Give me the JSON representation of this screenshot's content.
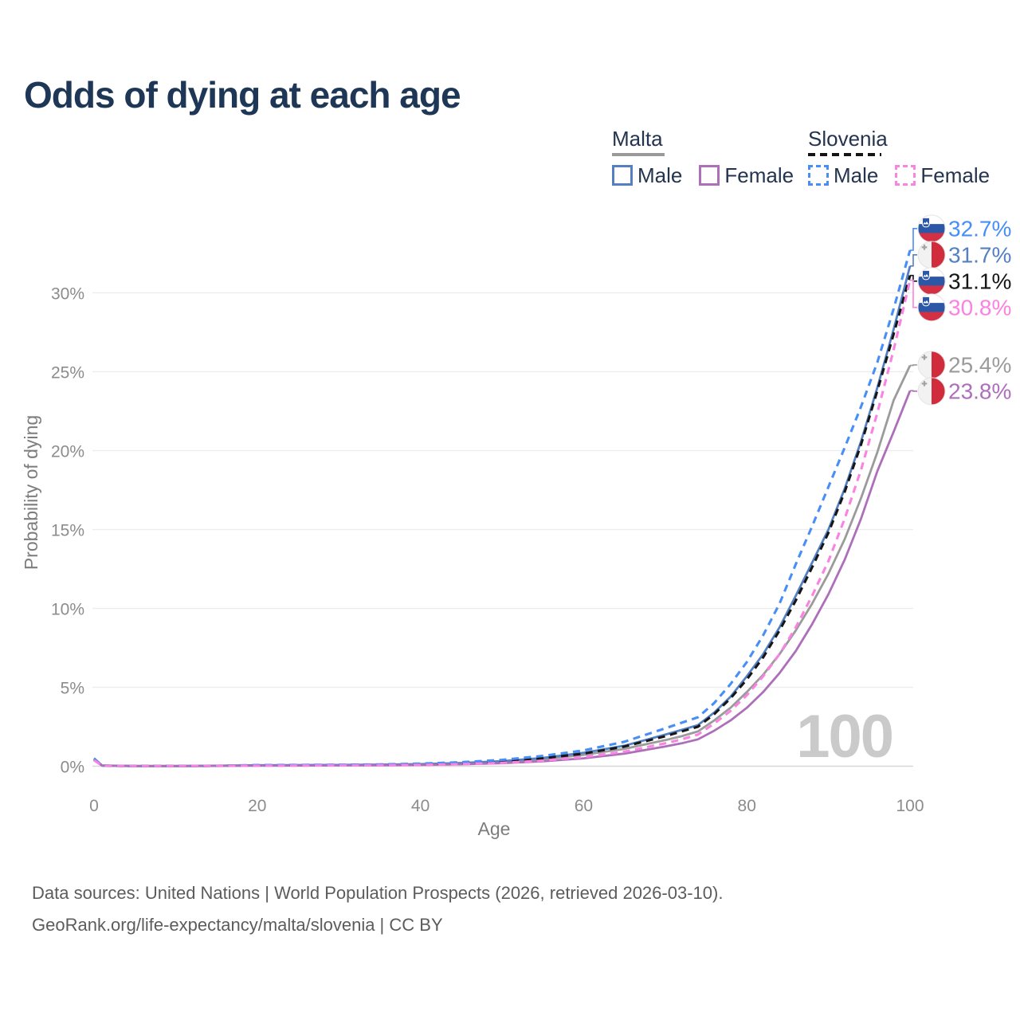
{
  "title": "Odds of dying at each age",
  "legend": {
    "malta": {
      "title": "Malta",
      "male_label": "Male",
      "female_label": "Female"
    },
    "slovenia": {
      "title": "Slovenia",
      "male_label": "Male",
      "female_label": "Female"
    }
  },
  "footer": {
    "line1": "Data sources: United Nations | World Population Prospects (2026, retrieved 2026-03-10).",
    "line2": "GeoRank.org/life-expectancy/malta/slovenia | CC BY"
  },
  "chart_data": {
    "type": "line",
    "title": "Odds of dying at each age",
    "xlabel": "Age",
    "ylabel": "Probability of dying",
    "xlim": [
      0,
      100
    ],
    "ylim_pct": [
      0,
      33
    ],
    "x_ticks": [
      0,
      20,
      40,
      60,
      80,
      100
    ],
    "y_ticks_pct": [
      0,
      5,
      10,
      15,
      20,
      25,
      30
    ],
    "y_tick_suffix": "%",
    "grid": true,
    "legend_position": "top-right",
    "age_marker": "100",
    "ages": [
      0,
      1,
      5,
      10,
      15,
      20,
      25,
      30,
      35,
      40,
      45,
      50,
      55,
      60,
      65,
      70,
      72,
      74,
      76,
      78,
      80,
      82,
      84,
      86,
      88,
      90,
      92,
      94,
      96,
      98,
      100
    ],
    "series": [
      {
        "id": "malta-both",
        "country": "Malta",
        "sex": "Both",
        "color": "#9b9b9b",
        "line": "solid",
        "flag": "malta",
        "end_value_pct": 25.4,
        "end_label": "25.4%",
        "values_pct": [
          0.45,
          0.04,
          0.01,
          0.01,
          0.02,
          0.05,
          0.06,
          0.07,
          0.08,
          0.11,
          0.17,
          0.27,
          0.44,
          0.72,
          1.1,
          1.65,
          1.9,
          2.2,
          2.9,
          3.7,
          4.7,
          5.8,
          7.1,
          8.6,
          10.3,
          12.2,
          14.4,
          17.0,
          19.9,
          23.2,
          25.4
        ]
      },
      {
        "id": "malta-male",
        "country": "Malta",
        "sex": "Male",
        "color": "#5480c1",
        "line": "solid",
        "flag": "malta",
        "end_value_pct": 31.7,
        "end_label": "31.7%",
        "values_pct": [
          0.5,
          0.04,
          0.01,
          0.01,
          0.03,
          0.06,
          0.07,
          0.08,
          0.1,
          0.13,
          0.2,
          0.32,
          0.52,
          0.85,
          1.3,
          2.0,
          2.3,
          2.6,
          3.4,
          4.4,
          5.7,
          7.1,
          8.8,
          10.8,
          12.9,
          15.0,
          17.6,
          20.6,
          24.0,
          27.7,
          31.7
        ]
      },
      {
        "id": "malta-female",
        "country": "Malta",
        "sex": "Female",
        "color": "#ad6fba",
        "line": "solid",
        "flag": "malta",
        "end_value_pct": 23.8,
        "end_label": "23.8%",
        "values_pct": [
          0.4,
          0.03,
          0.01,
          0.01,
          0.02,
          0.03,
          0.04,
          0.05,
          0.06,
          0.08,
          0.12,
          0.19,
          0.31,
          0.5,
          0.8,
          1.25,
          1.45,
          1.7,
          2.25,
          2.9,
          3.7,
          4.7,
          5.9,
          7.3,
          9.0,
          10.9,
          13.1,
          15.7,
          18.7,
          21.2,
          23.8
        ]
      },
      {
        "id": "slovenia-both",
        "country": "Slovenia",
        "sex": "Both",
        "color": "#161616",
        "line": "dashed",
        "flag": "slovenia",
        "end_value_pct": 31.1,
        "end_label": "31.1%",
        "values_pct": [
          0.42,
          0.03,
          0.01,
          0.01,
          0.02,
          0.05,
          0.06,
          0.07,
          0.09,
          0.12,
          0.19,
          0.3,
          0.5,
          0.8,
          1.25,
          1.9,
          2.2,
          2.5,
          3.3,
          4.3,
          5.5,
          6.9,
          8.6,
          10.5,
          12.6,
          14.8,
          17.4,
          20.4,
          23.8,
          27.4,
          31.1
        ]
      },
      {
        "id": "slovenia-male",
        "country": "Slovenia",
        "sex": "Male",
        "color": "#478ef7",
        "line": "dashed",
        "flag": "slovenia",
        "end_value_pct": 32.7,
        "end_label": "32.7%",
        "values_pct": [
          0.45,
          0.04,
          0.01,
          0.01,
          0.03,
          0.07,
          0.08,
          0.09,
          0.11,
          0.16,
          0.25,
          0.4,
          0.65,
          1.0,
          1.55,
          2.4,
          2.75,
          3.1,
          4.0,
          5.2,
          6.6,
          8.3,
          10.3,
          12.8,
          15.2,
          17.7,
          20.2,
          22.8,
          25.6,
          29.0,
          32.7
        ]
      },
      {
        "id": "slovenia-female",
        "country": "Slovenia",
        "sex": "Female",
        "color": "#fa82e2",
        "line": "dashed",
        "flag": "slovenia",
        "end_value_pct": 30.8,
        "end_label": "30.8%",
        "values_pct": [
          0.38,
          0.03,
          0.01,
          0.01,
          0.02,
          0.03,
          0.04,
          0.05,
          0.06,
          0.08,
          0.13,
          0.21,
          0.35,
          0.58,
          0.92,
          1.45,
          1.7,
          2.0,
          2.7,
          3.5,
          4.5,
          5.7,
          7.1,
          8.8,
          10.8,
          13.0,
          15.7,
          18.8,
          22.4,
          26.4,
          30.8
        ]
      }
    ],
    "flag_colors": {
      "slovenia_blue": "#2c57a7",
      "slovenia_red": "#d43043",
      "malta_red": "#d02c3c",
      "malta_cross_gray": "#a3a3a3"
    }
  }
}
